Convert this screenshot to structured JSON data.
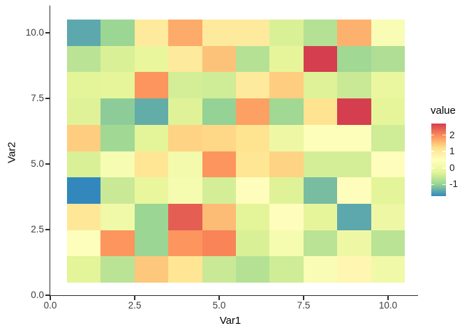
{
  "figure": {
    "background": "#ffffff"
  },
  "chart_data": {
    "type": "heatmap",
    "title": "",
    "xlabel": "Var1",
    "ylabel": "Var2",
    "x_tick_labels": [
      "0.0",
      "2.5",
      "5.0",
      "7.5",
      "10.0"
    ],
    "x_tick_values": [
      0,
      2.5,
      5,
      7.5,
      10
    ],
    "y_tick_labels": [
      "0.0",
      "2.5",
      "5.0",
      "7.5",
      "10.0"
    ],
    "y_tick_values": [
      0,
      2.5,
      5,
      7.5,
      10
    ],
    "x_categories": [
      1,
      2,
      3,
      4,
      5,
      6,
      7,
      8,
      9,
      10
    ],
    "y_categories": [
      1,
      2,
      3,
      4,
      5,
      6,
      7,
      8,
      9,
      10
    ],
    "grid": "off",
    "legend_position": "right",
    "rows_order": "Var2 from 10 (top) to 1 (bottom), values for Var1 = 1..10",
    "rows": [
      {
        "var2": 10,
        "values": [
          -1.4,
          -0.95,
          1.0,
          1.7,
          1.0,
          1.0,
          -0.35,
          -0.7,
          1.65,
          0.3
        ]
      },
      {
        "var2": 9,
        "values": [
          -0.65,
          -0.35,
          -0.15,
          1.0,
          1.5,
          -0.7,
          -0.2,
          2.7,
          -0.9,
          -0.75
        ]
      },
      {
        "var2": 8,
        "values": [
          -0.25,
          -0.2,
          1.9,
          -0.4,
          -0.45,
          1.0,
          1.4,
          -0.3,
          -0.5,
          -0.1
        ]
      },
      {
        "var2": 7,
        "values": [
          -0.3,
          -1.05,
          -1.35,
          -0.3,
          -1.0,
          1.8,
          -0.9,
          1.15,
          2.7,
          -0.2
        ]
      },
      {
        "var2": 6,
        "values": [
          1.4,
          -0.9,
          -0.25,
          1.35,
          1.3,
          1.15,
          0.0,
          0.4,
          0.4,
          -0.45
        ]
      },
      {
        "var2": 5,
        "values": [
          -0.35,
          0.25,
          1.1,
          0.15,
          1.9,
          1.1,
          1.35,
          -0.4,
          -0.4,
          0.55
        ]
      },
      {
        "var2": 4,
        "values": [
          -1.7,
          -0.5,
          -0.15,
          0.2,
          -0.4,
          0.55,
          -0.3,
          -1.2,
          0.55,
          -0.25
        ]
      },
      {
        "var2": 3,
        "values": [
          1.05,
          0.05,
          -0.95,
          2.4,
          1.55,
          -0.25,
          0.55,
          -0.2,
          -1.4,
          0.0
        ]
      },
      {
        "var2": 2,
        "values": [
          0.45,
          1.9,
          -0.95,
          1.9,
          2.05,
          -0.35,
          0.2,
          -0.65,
          0.0,
          -0.65
        ]
      },
      {
        "var2": 1,
        "values": [
          -0.25,
          -0.65,
          1.45,
          1.1,
          -0.5,
          -0.7,
          -0.45,
          0.3,
          0.7,
          0.05
        ]
      }
    ],
    "legend": {
      "title": "value",
      "tick_labels": [
        "2",
        "1",
        "0",
        "-1"
      ],
      "tick_values": [
        2,
        1,
        0,
        -1
      ]
    },
    "colormap": {
      "name": "spectral",
      "stops_low_to_high": [
        "#3288bd",
        "#99d594",
        "#e6f598",
        "#ffffbf",
        "#fee08b",
        "#fc8d59",
        "#d53e4f"
      ],
      "domain": [
        -1.7,
        2.7
      ]
    }
  }
}
